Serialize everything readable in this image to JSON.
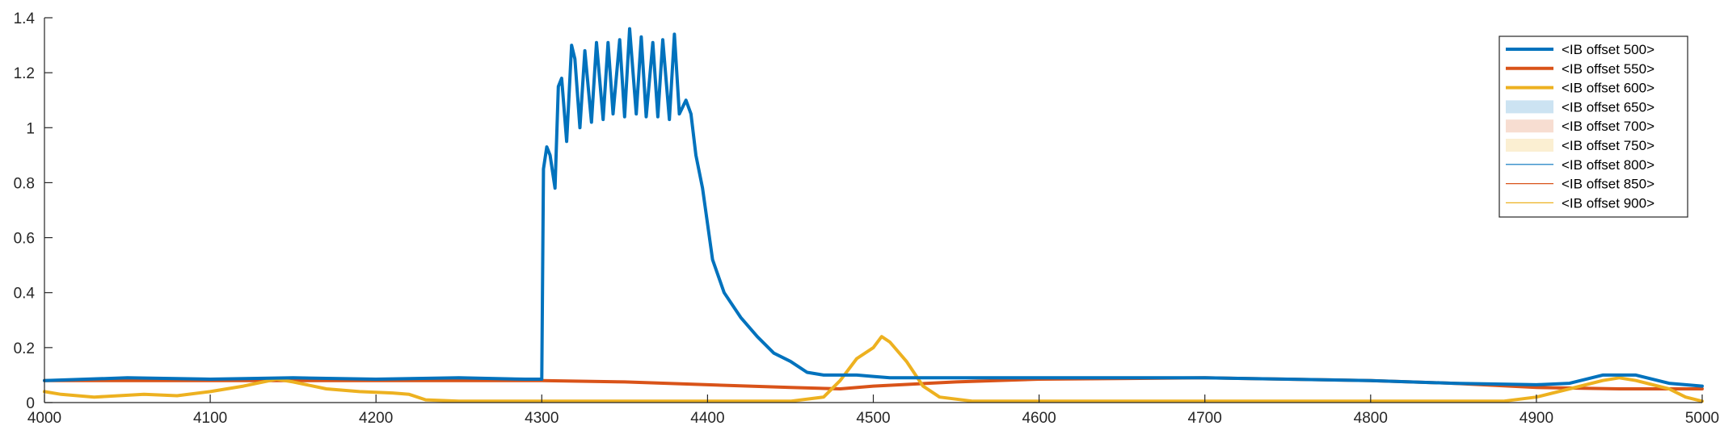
{
  "chart_data": {
    "type": "line",
    "title": "",
    "xlabel": "",
    "ylabel": "",
    "xlim": [
      4000,
      5000
    ],
    "ylim": [
      0,
      1.4
    ],
    "xticks": [
      4000,
      4100,
      4200,
      4300,
      4400,
      4500,
      4600,
      4700,
      4800,
      4900,
      5000
    ],
    "yticks": [
      0,
      0.2,
      0.4,
      0.6,
      0.8,
      1,
      1.2,
      1.4
    ],
    "xtick_labels": [
      "4000",
      "4100",
      "4200",
      "4300",
      "4400",
      "4500",
      "4600",
      "4700",
      "4800",
      "4900",
      "5000"
    ],
    "ytick_labels": [
      "0",
      "0.2",
      "0.4",
      "0.6",
      "0.8",
      "1",
      "1.2",
      "1.4"
    ],
    "grid": false,
    "legend_position": "top-right",
    "legend": [
      {
        "label": "<IB offset 500>",
        "color": "#0072BD",
        "style": "thick-line"
      },
      {
        "label": "<IB offset 550>",
        "color": "#D95319",
        "style": "thick-line"
      },
      {
        "label": "<IB offset 600>",
        "color": "#EDB120",
        "style": "thick-line"
      },
      {
        "label": "<IB offset 650>",
        "color": "#0072BD",
        "style": "band"
      },
      {
        "label": "<IB offset 700>",
        "color": "#D95319",
        "style": "band"
      },
      {
        "label": "<IB offset 750>",
        "color": "#EDB120",
        "style": "band"
      },
      {
        "label": "<IB offset 800>",
        "color": "#0072BD",
        "style": "thin-line"
      },
      {
        "label": "<IB offset 850>",
        "color": "#D95319",
        "style": "thin-line"
      },
      {
        "label": "<IB offset 900>",
        "color": "#EDB120",
        "style": "thin-line"
      }
    ],
    "series": [
      {
        "name": "<IB offset 500>",
        "color": "#0072BD",
        "x": [
          4000,
          4050,
          4100,
          4150,
          4200,
          4250,
          4290,
          4300,
          4301,
          4303,
          4305,
          4308,
          4310,
          4312,
          4315,
          4318,
          4320,
          4323,
          4326,
          4330,
          4333,
          4337,
          4340,
          4343,
          4347,
          4350,
          4353,
          4357,
          4360,
          4363,
          4367,
          4370,
          4373,
          4377,
          4380,
          4383,
          4387,
          4390,
          4393,
          4397,
          4400,
          4403,
          4410,
          4420,
          4430,
          4440,
          4450,
          4460,
          4470,
          4480,
          4490,
          4500,
          4510,
          4520,
          4530,
          4550,
          4600,
          4650,
          4700,
          4750,
          4800,
          4850,
          4900,
          4920,
          4940,
          4960,
          4980,
          5000
        ],
        "y": [
          0.08,
          0.09,
          0.085,
          0.09,
          0.085,
          0.09,
          0.085,
          0.085,
          0.85,
          0.93,
          0.9,
          0.78,
          1.15,
          1.18,
          0.95,
          1.3,
          1.25,
          1.0,
          1.28,
          1.02,
          1.31,
          1.03,
          1.31,
          1.05,
          1.32,
          1.04,
          1.36,
          1.05,
          1.33,
          1.04,
          1.31,
          1.04,
          1.32,
          1.03,
          1.34,
          1.05,
          1.1,
          1.05,
          0.9,
          0.78,
          0.65,
          0.52,
          0.4,
          0.31,
          0.24,
          0.18,
          0.15,
          0.11,
          0.1,
          0.1,
          0.1,
          0.095,
          0.09,
          0.09,
          0.09,
          0.09,
          0.09,
          0.09,
          0.09,
          0.085,
          0.08,
          0.07,
          0.065,
          0.07,
          0.1,
          0.1,
          0.07,
          0.06
        ]
      },
      {
        "name": "<IB offset 550>",
        "color": "#D95319",
        "x": [
          4000,
          4100,
          4200,
          4300,
          4350,
          4400,
          4450,
          4480,
          4500,
          4550,
          4600,
          4700,
          4800,
          4850,
          4900,
          4950,
          5000
        ],
        "y": [
          0.08,
          0.08,
          0.08,
          0.08,
          0.075,
          0.065,
          0.055,
          0.05,
          0.06,
          0.075,
          0.085,
          0.09,
          0.08,
          0.07,
          0.055,
          0.05,
          0.05
        ]
      },
      {
        "name": "<IB offset 600>",
        "color": "#EDB120",
        "x": [
          4000,
          4010,
          4030,
          4060,
          4080,
          4100,
          4120,
          4140,
          4150,
          4170,
          4190,
          4210,
          4220,
          4230,
          4250,
          4300,
          4350,
          4400,
          4450,
          4470,
          4480,
          4490,
          4500,
          4505,
          4510,
          4520,
          4530,
          4540,
          4560,
          4600,
          4700,
          4800,
          4880,
          4900,
          4920,
          4940,
          4950,
          4960,
          4980,
          4990,
          5000
        ],
        "y": [
          0.04,
          0.03,
          0.02,
          0.03,
          0.025,
          0.04,
          0.06,
          0.085,
          0.075,
          0.05,
          0.04,
          0.035,
          0.03,
          0.01,
          0.005,
          0.005,
          0.005,
          0.005,
          0.005,
          0.02,
          0.08,
          0.16,
          0.2,
          0.24,
          0.22,
          0.15,
          0.06,
          0.02,
          0.005,
          0.005,
          0.005,
          0.005,
          0.005,
          0.02,
          0.05,
          0.08,
          0.09,
          0.08,
          0.05,
          0.02,
          0.005
        ]
      }
    ]
  }
}
